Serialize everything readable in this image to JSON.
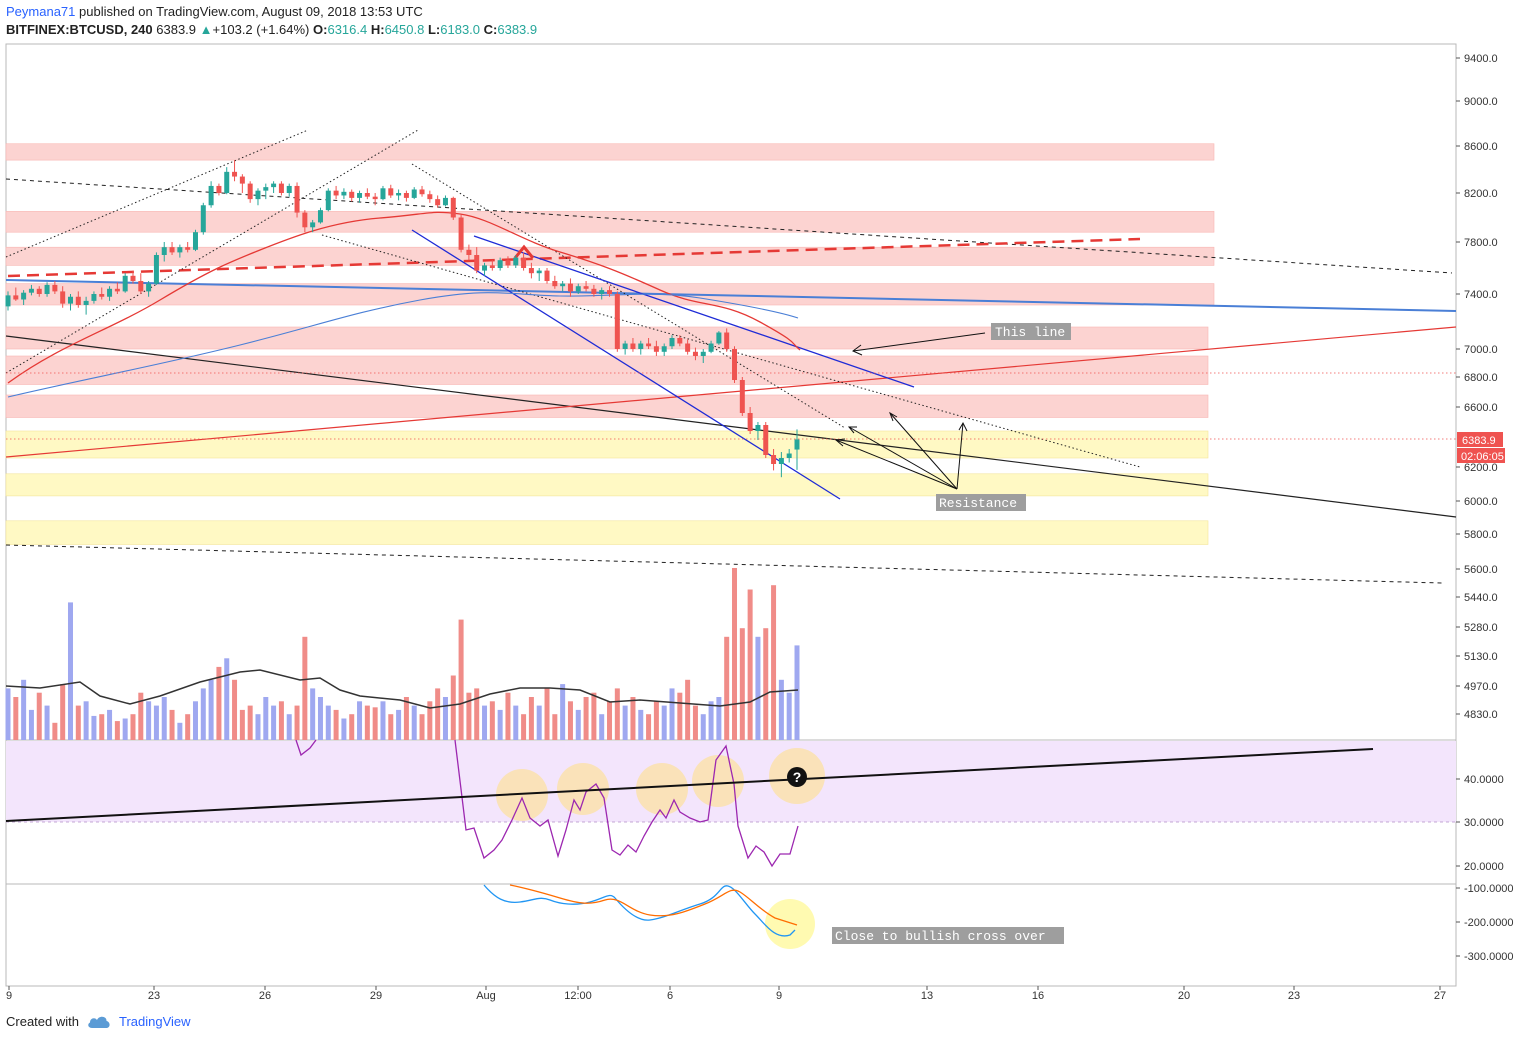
{
  "header": {
    "author": "Peymana71",
    "published_text": "published on TradingView.com, August 09, 2018 13:53 UTC",
    "symbol": "BITFINEX:BTCUSD, 240",
    "last": "6383.9",
    "change": "+103.2 (+1.64%)",
    "o_label": "O:",
    "o": "6316.4",
    "h_label": "H:",
    "h": "6450.8",
    "l_label": "L:",
    "l": "6183.0",
    "c_label": "C:",
    "c": "6383.9"
  },
  "footer": {
    "created_with": "Created with",
    "brand": "TradingView"
  },
  "annotations": {
    "this_line": "This line",
    "resistance": "Resistance",
    "bullish": "Close to bullish cross over",
    "question": "?"
  },
  "price_badges": {
    "last_price": "6383.9",
    "countdown": "02:06:05"
  },
  "colors": {
    "up": "#26a69a",
    "down": "#ef5350",
    "zone_red": "#fcd3d1",
    "zone_yellow": "#fff9c4",
    "ma_red": "#e53935",
    "ma_blue": "#4a7fd6",
    "rsi": "#9c27b0",
    "rsi_band": "#f3e5fc",
    "macd": "#2196f3",
    "signal": "#ff6d00"
  },
  "chart_data": {
    "type": "candlestick",
    "symbol": "BITFINEX:BTCUSD",
    "timeframe": "240",
    "price_axis": {
      "ticks": [
        "9400.0",
        "9000.0",
        "8600.0",
        "8200.0",
        "7800.0",
        "7400.0",
        "7000.0",
        "6800.0",
        "6600.0",
        "6200.0",
        "6000.0",
        "5800.0",
        "5600.0",
        "5440.0",
        "5280.0",
        "5130.0",
        "4970.0",
        "4830.0"
      ]
    },
    "rsi_axis": {
      "ticks": [
        "40.0000",
        "30.0000",
        "20.0000"
      ]
    },
    "macd_axis": {
      "ticks": [
        "-100.0000",
        "-200.0000",
        "-300.0000"
      ]
    },
    "time_axis": {
      "ticks": [
        "9",
        "23",
        "26",
        "29",
        "Aug",
        "12:00",
        "6",
        "9",
        "13",
        "16",
        "20",
        "23",
        "27"
      ]
    },
    "candles": [
      [
        7310,
        7420,
        7280,
        7390
      ],
      [
        7390,
        7450,
        7350,
        7360
      ],
      [
        7360,
        7430,
        7320,
        7410
      ],
      [
        7410,
        7470,
        7390,
        7440
      ],
      [
        7440,
        7460,
        7380,
        7400
      ],
      [
        7400,
        7490,
        7380,
        7470
      ],
      [
        7470,
        7500,
        7400,
        7420
      ],
      [
        7420,
        7460,
        7300,
        7330
      ],
      [
        7330,
        7400,
        7280,
        7380
      ],
      [
        7380,
        7420,
        7300,
        7320
      ],
      [
        7320,
        7380,
        7250,
        7350
      ],
      [
        7350,
        7420,
        7330,
        7400
      ],
      [
        7400,
        7450,
        7360,
        7380
      ],
      [
        7380,
        7460,
        7350,
        7440
      ],
      [
        7440,
        7490,
        7400,
        7420
      ],
      [
        7420,
        7560,
        7410,
        7540
      ],
      [
        7540,
        7580,
        7480,
        7500
      ],
      [
        7500,
        7560,
        7400,
        7420
      ],
      [
        7420,
        7500,
        7380,
        7480
      ],
      [
        7480,
        7720,
        7470,
        7700
      ],
      [
        7700,
        7800,
        7650,
        7760
      ],
      [
        7760,
        7800,
        7700,
        7720
      ],
      [
        7720,
        7780,
        7680,
        7760
      ],
      [
        7760,
        7800,
        7720,
        7740
      ],
      [
        7740,
        7900,
        7730,
        7880
      ],
      [
        7880,
        8120,
        7860,
        8100
      ],
      [
        8100,
        8300,
        8080,
        8260
      ],
      [
        8260,
        8280,
        8180,
        8200
      ],
      [
        8200,
        8420,
        8190,
        8380
      ],
      [
        8380,
        8480,
        8300,
        8340
      ],
      [
        8340,
        8360,
        8200,
        8280
      ],
      [
        8280,
        8300,
        8120,
        8150
      ],
      [
        8150,
        8240,
        8100,
        8220
      ],
      [
        8220,
        8280,
        8150,
        8250
      ],
      [
        8250,
        8300,
        8200,
        8280
      ],
      [
        8280,
        8300,
        8180,
        8200
      ],
      [
        8200,
        8280,
        8170,
        8260
      ],
      [
        8260,
        8290,
        8000,
        8040
      ],
      [
        8040,
        8060,
        7880,
        7920
      ],
      [
        7920,
        7980,
        7880,
        7960
      ],
      [
        7960,
        8080,
        7950,
        8060
      ],
      [
        8060,
        8240,
        8050,
        8220
      ],
      [
        8220,
        8260,
        8150,
        8180
      ],
      [
        8180,
        8240,
        8150,
        8210
      ],
      [
        8210,
        8230,
        8130,
        8160
      ],
      [
        8160,
        8220,
        8120,
        8200
      ],
      [
        8200,
        8240,
        8150,
        8170
      ],
      [
        8170,
        8200,
        8100,
        8150
      ],
      [
        8150,
        8260,
        8140,
        8240
      ],
      [
        8240,
        8270,
        8160,
        8180
      ],
      [
        8180,
        8230,
        8140,
        8200
      ],
      [
        8200,
        8220,
        8130,
        8160
      ],
      [
        8160,
        8250,
        8150,
        8230
      ],
      [
        8230,
        8260,
        8170,
        8190
      ],
      [
        8190,
        8220,
        8120,
        8150
      ],
      [
        8150,
        8180,
        8080,
        8100
      ],
      [
        8100,
        8180,
        8090,
        8160
      ],
      [
        8160,
        8170,
        7980,
        8000
      ],
      [
        8000,
        8020,
        7720,
        7740
      ],
      [
        7740,
        7780,
        7660,
        7700
      ],
      [
        7700,
        7760,
        7560,
        7580
      ],
      [
        7580,
        7640,
        7540,
        7620
      ],
      [
        7620,
        7660,
        7580,
        7600
      ],
      [
        7600,
        7680,
        7580,
        7660
      ],
      [
        7660,
        7690,
        7600,
        7620
      ],
      [
        7620,
        7700,
        7600,
        7680
      ],
      [
        7680,
        7720,
        7580,
        7600
      ],
      [
        7600,
        7640,
        7520,
        7560
      ],
      [
        7560,
        7600,
        7500,
        7580
      ],
      [
        7580,
        7600,
        7480,
        7500
      ],
      [
        7500,
        7540,
        7440,
        7460
      ],
      [
        7460,
        7500,
        7420,
        7480
      ],
      [
        7480,
        7520,
        7380,
        7420
      ],
      [
        7420,
        7480,
        7400,
        7460
      ],
      [
        7460,
        7500,
        7420,
        7440
      ],
      [
        7440,
        7470,
        7380,
        7400
      ],
      [
        7400,
        7450,
        7360,
        7430
      ],
      [
        7430,
        7460,
        7380,
        7400
      ],
      [
        7400,
        7420,
        6980,
        7000
      ],
      [
        7000,
        7060,
        6960,
        7040
      ],
      [
        7040,
        7080,
        6980,
        7000
      ],
      [
        7000,
        7060,
        6960,
        7040
      ],
      [
        7040,
        7080,
        7000,
        7020
      ],
      [
        7020,
        7060,
        6950,
        6980
      ],
      [
        6980,
        7040,
        6950,
        7020
      ],
      [
        7020,
        7100,
        7000,
        7080
      ],
      [
        7080,
        7100,
        7020,
        7040
      ],
      [
        7040,
        7070,
        6960,
        6980
      ],
      [
        6980,
        7010,
        6920,
        6950
      ],
      [
        6950,
        7000,
        6900,
        6980
      ],
      [
        6980,
        7060,
        6970,
        7040
      ],
      [
        7040,
        7130,
        7030,
        7120
      ],
      [
        7120,
        7150,
        6980,
        7000
      ],
      [
        7000,
        7020,
        6760,
        6780
      ],
      [
        6780,
        6800,
        6540,
        6560
      ],
      [
        6560,
        6600,
        6420,
        6440
      ],
      [
        6440,
        6500,
        6380,
        6480
      ],
      [
        6480,
        6500,
        6260,
        6280
      ],
      [
        6280,
        6320,
        6180,
        6220
      ],
      [
        6220,
        6300,
        6140,
        6260
      ],
      [
        6260,
        6320,
        6230,
        6290
      ],
      [
        6316.4,
        6450.8,
        6183.0,
        6383.9
      ]
    ],
    "volumes": [
      60,
      50,
      70,
      35,
      55,
      40,
      20,
      65,
      160,
      40,
      45,
      28,
      30,
      35,
      22,
      25,
      30,
      55,
      45,
      40,
      50,
      35,
      20,
      30,
      45,
      60,
      70,
      85,
      95,
      70,
      35,
      40,
      30,
      50,
      40,
      45,
      30,
      40,
      120,
      60,
      50,
      40,
      35,
      25,
      30,
      45,
      40,
      38,
      45,
      30,
      35,
      50,
      40,
      30,
      45,
      60,
      50,
      75,
      140,
      55,
      60,
      40,
      45,
      35,
      55,
      40,
      30,
      50,
      40,
      60,
      30,
      65,
      45,
      35,
      50,
      55,
      30,
      45,
      60,
      40,
      50,
      35,
      30,
      45,
      40,
      60,
      55,
      70,
      40,
      30,
      45,
      50,
      120,
      200,
      130,
      175,
      120,
      130,
      180,
      70,
      55,
      110
    ],
    "zones_red": [
      [
        8620,
        8480
      ],
      [
        8050,
        7880
      ],
      [
        7760,
        7620
      ],
      [
        7480,
        7320
      ],
      [
        7160,
        7000
      ],
      [
        6950,
        6750
      ],
      [
        6680,
        6530
      ]
    ],
    "zones_yellow": [
      [
        6440,
        6260
      ],
      [
        6160,
        6030
      ],
      [
        5880,
        5740
      ]
    ],
    "rsi_band": [
      50,
      30
    ],
    "rsi_values": [
      33,
      20,
      22,
      29,
      37,
      27,
      33,
      30,
      20,
      28,
      38,
      30,
      28,
      32,
      40,
      38,
      27,
      30,
      21,
      24,
      22,
      28,
      35,
      32,
      28,
      24,
      22,
      20,
      24,
      25,
      27
    ]
  }
}
